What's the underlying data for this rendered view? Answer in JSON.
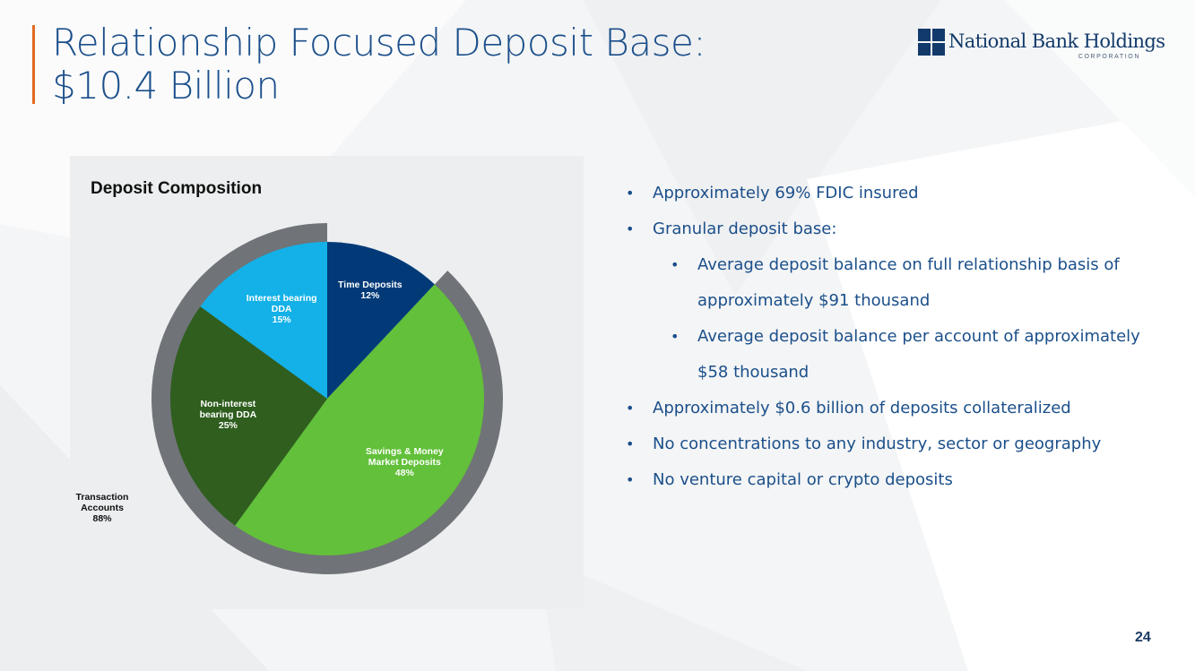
{
  "slide": {
    "title_line1": "Relationship Focused Deposit Base:",
    "title_line2": "$10.4 Billion",
    "page_number": "24"
  },
  "logo": {
    "name": "National Bank Holdings",
    "sub": "CORPORATION",
    "color": "#123a6b"
  },
  "bullets": [
    {
      "text": "Approximately 69% FDIC insured",
      "level": 1
    },
    {
      "text": "Granular deposit base:",
      "level": 1
    },
    {
      "text": "Average deposit balance on full relationship basis of approximately $91 thousand",
      "level": 2
    },
    {
      "text": "Average deposit balance per account of approximately $58 thousand",
      "level": 2
    },
    {
      "text": "Approximately $0.6 billion of deposits collateralized",
      "level": 1
    },
    {
      "text": "No concentrations to any industry, sector or geography",
      "level": 1
    },
    {
      "text": "No venture capital or crypto deposits",
      "level": 1
    }
  ],
  "chart_data": {
    "type": "pie",
    "title": "Deposit Composition",
    "slices": [
      {
        "label_lines": [
          "Time Deposits"
        ],
        "value": 12,
        "value_label": "12%",
        "color": "#023a78"
      },
      {
        "label_lines": [
          "Savings & Money",
          "Market Deposits"
        ],
        "value": 48,
        "value_label": "48%",
        "color": "#62c03a"
      },
      {
        "label_lines": [
          "Non-interest",
          "bearing DDA"
        ],
        "value": 25,
        "value_label": "25%",
        "color": "#2f5e1e"
      },
      {
        "label_lines": [
          "Interest bearing",
          "DDA"
        ],
        "value": 15,
        "value_label": "15%",
        "color": "#13b1e8"
      }
    ],
    "group": {
      "label_lines": [
        "Transaction",
        "Accounts"
      ],
      "value": 88,
      "value_label": "88%",
      "color": "#707378"
    }
  }
}
